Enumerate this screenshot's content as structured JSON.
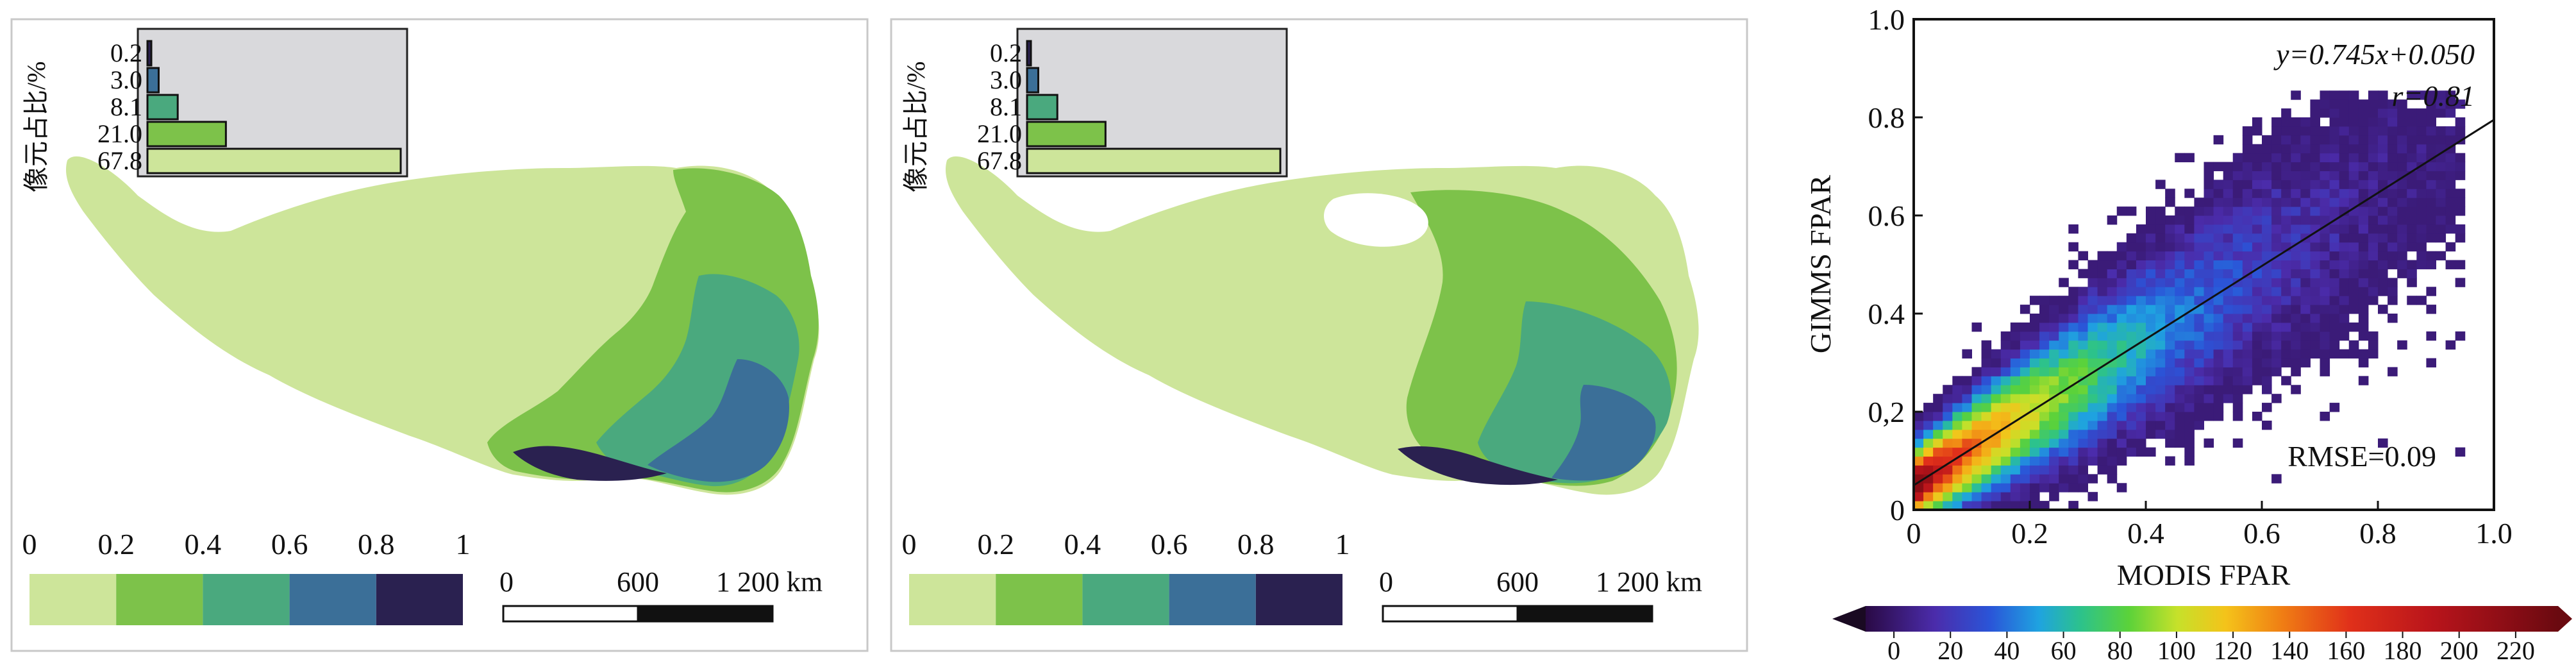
{
  "chart_data": [
    {
      "type": "map",
      "panel": "left",
      "legend": {
        "ticks": [
          "0",
          "0.2",
          "0.4",
          "0.6",
          "0.8",
          "1"
        ],
        "colors": [
          "#cde59a",
          "#7dc24a",
          "#4aa97e",
          "#3b6f98",
          "#2a2150"
        ]
      },
      "scale_bar": {
        "labels": [
          "0",
          "600",
          "1 200 km"
        ]
      },
      "inset_histogram": {
        "ylabel": "像元占比/%",
        "categories": [
          "0.2",
          "3.0",
          "8.1",
          "21.0",
          "67.8"
        ],
        "values": [
          0.2,
          3.0,
          8.1,
          21.0,
          67.8
        ],
        "colors": [
          "#2a2150",
          "#3b6f98",
          "#4aa97e",
          "#7dc24a",
          "#cde59a"
        ],
        "xlim": [
          0,
          67.8
        ]
      }
    },
    {
      "type": "map",
      "panel": "middle",
      "legend": {
        "ticks": [
          "0",
          "0.2",
          "0.4",
          "0.6",
          "0.8",
          "1"
        ],
        "colors": [
          "#cde59a",
          "#7dc24a",
          "#4aa97e",
          "#3b6f98",
          "#2a2150"
        ]
      },
      "scale_bar": {
        "labels": [
          "0",
          "600",
          "1 200 km"
        ]
      },
      "inset_histogram": {
        "ylabel": "像元占比/%",
        "categories": [
          "0.2",
          "3.0",
          "8.1",
          "21.0",
          "67.8"
        ],
        "values": [
          0.2,
          3.0,
          8.1,
          21.0,
          67.8
        ],
        "colors": [
          "#2a2150",
          "#3b6f98",
          "#4aa97e",
          "#7dc24a",
          "#cde59a"
        ],
        "xlim": [
          0,
          67.8
        ]
      }
    },
    {
      "type": "heatmap",
      "panel": "right",
      "subtype": "density-scatter",
      "xlabel": "MODIS FPAR",
      "ylabel": "GIMMS FPAR",
      "xlim": [
        0,
        1.0
      ],
      "ylim": [
        0,
        1.0
      ],
      "x_ticks": [
        "0",
        "0.2",
        "0.4",
        "0.6",
        "0.8",
        "1.0"
      ],
      "y_ticks": [
        "0",
        "0,2",
        "0.4",
        "0.6",
        "0.8",
        "1.0"
      ],
      "fit_line": {
        "slope": 0.745,
        "intercept": 0.05
      },
      "annotations": {
        "equation": "y=0.745x+0.050",
        "r": "r=0.81",
        "rmse": "RMSE=0.09"
      },
      "colorbar": {
        "ticks": [
          "0",
          "20",
          "40",
          "60",
          "80",
          "100",
          "120",
          "140",
          "160",
          "180",
          "200",
          "220"
        ],
        "range": [
          -10,
          235
        ]
      }
    }
  ]
}
